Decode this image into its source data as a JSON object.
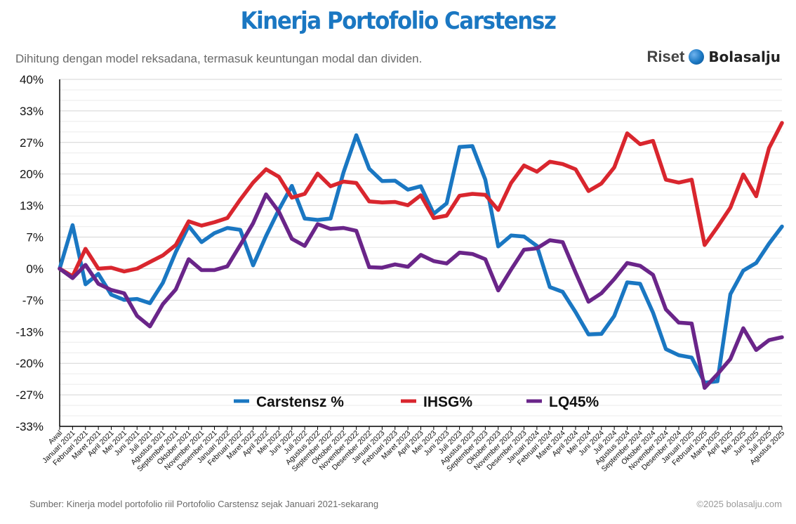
{
  "header": {
    "title": "Kinerja Portofolio Carstensz",
    "subtitle": "Dihitung dengan model reksadana, termasuk keuntungan modal dan dividen.",
    "brand_riset": "Riset",
    "brand_name": "Bolasalju",
    "brand_icon": "snowball-icon"
  },
  "footer": {
    "source": "Sumber: Kinerja model portofolio riil Portofolio Carstensz sejak Januari 2021-sekarang",
    "copyright": "©2025 bolasalju.com"
  },
  "colors": {
    "carstensz": "#1a77c2",
    "ihsg": "#d9262e",
    "lq45": "#6a2589",
    "grid": "#d4d4d4",
    "axis": "#000000"
  },
  "chart_data": {
    "type": "line",
    "title": "Kinerja Portofolio Carstensz",
    "xlabel": "",
    "ylabel": "",
    "ylim": [
      -33.33,
      40
    ],
    "yticks": [
      -33.33,
      -26.67,
      -20,
      -13.33,
      -6.67,
      0,
      6.67,
      13.33,
      20,
      26.67,
      33.33,
      40
    ],
    "ytick_labels": [
      "-33%",
      "-27%",
      "-20%",
      "-13%",
      "-7%",
      "0%",
      "7%",
      "13%",
      "20%",
      "27%",
      "33%",
      "40%"
    ],
    "grid": true,
    "legend_position": "bottom-center",
    "categories": [
      "Awal",
      "Januari 2021",
      "Februari 2021",
      "Maret 2021",
      "April 2021",
      "Mei 2021",
      "Juni 2021",
      "Juli 2021",
      "Agustus 2021",
      "September 2021",
      "Oktober 2021",
      "November 2021",
      "Desember 2021",
      "Januari 2022",
      "Februari 2022",
      "Maret 2022",
      "April 2022",
      "Mei 2022",
      "Juni 2022",
      "Juli 2022",
      "Agustus 2022",
      "September 2022",
      "Oktober 2022",
      "November 2022",
      "Desember 2022",
      "Januari 2023",
      "Februari 2023",
      "Maret 2023",
      "April 2023",
      "Mei 2023",
      "Juni 2023",
      "Juli 2023",
      "Agustus 2023",
      "September 2023",
      "Oktober 2023",
      "November 2023",
      "Desember 2023",
      "Januari 2024",
      "Februari 2024",
      "Maret 2024",
      "April 2024",
      "Mei 2024",
      "Juni 2024",
      "Juli 2024",
      "Agustus 2024",
      "September 2024",
      "Oktober 2024",
      "November 2024",
      "Desember 2024",
      "Januari 2025",
      "Februari 2025",
      "Maret 2025",
      "April 2025",
      "Mei 2025",
      "Juni 2025",
      "Juli 2025",
      "Agustus 2025"
    ],
    "x_display_labels": [
      "Awal",
      "Januari 2021",
      "Februari 2021",
      "Maret 2021",
      "April 2021",
      "Mei 2021",
      "Juni 2021",
      "Juli 2021",
      "Agustus 2021",
      "September 2021",
      "Oktober 2021",
      "November 2021",
      "Desember 2021",
      "Januari 2022",
      "Februari 2022",
      "Maret 2022",
      "April 2022",
      "Mei 2022",
      "Juni 2022",
      "Juli 2022",
      "Agustus 2022",
      "September 2022",
      "Oktober 2022",
      "November 2022",
      "Desember 2022",
      "Januari 2023",
      "Februari 2023",
      "Maret 2023",
      "April 2023",
      "Mei 2023",
      "Juni 2023",
      "Juli 2023",
      "Agustus 2023",
      "September 2023",
      "Oktober 2023",
      "November 2023",
      "Desember 2023",
      "Januari 2024",
      "Februari 2024",
      "Maret 2024",
      "April 2024",
      "Mei 2024",
      "Juni 2024",
      "Juli 2024",
      "Agustus 2024",
      "September 2024",
      "Oktober 2024",
      "November 2024",
      "Desember 2024",
      "Januari 2025",
      "Februari 2025",
      "Maret 2025",
      "April 2025",
      "Mei 2025",
      "Juni 2025",
      "Juli 2025",
      "Agustus 2025"
    ],
    "series": [
      {
        "name": "Carstensz %",
        "color_key": "carstensz",
        "values": [
          0.0,
          9.2,
          -3.3,
          -1.1,
          -5.5,
          -6.6,
          -6.4,
          -7.3,
          -3.0,
          3.5,
          9.0,
          5.6,
          7.5,
          8.6,
          8.2,
          0.7,
          6.9,
          12.5,
          17.5,
          10.6,
          10.3,
          10.6,
          20.3,
          28.2,
          21.1,
          18.5,
          18.6,
          16.7,
          17.4,
          11.6,
          13.8,
          25.7,
          25.9,
          18.8,
          4.7,
          7.0,
          6.8,
          4.8,
          -3.9,
          -4.9,
          -9.2,
          -13.9,
          -13.8,
          -10.0,
          -2.9,
          -3.2,
          -9.3,
          -17.0,
          -18.3,
          -18.8,
          -24.1,
          -23.8,
          -5.4,
          -0.4,
          1.2,
          5.3,
          8.9
        ]
      },
      {
        "name": "IHSG%",
        "color_key": "ihsg",
        "values": [
          0.0,
          -1.6,
          4.2,
          0.0,
          0.2,
          -0.6,
          0.0,
          1.4,
          2.8,
          5.0,
          10.0,
          9.1,
          9.8,
          10.7,
          14.6,
          18.2,
          21.0,
          19.4,
          15.0,
          15.8,
          20.1,
          17.4,
          18.4,
          18.1,
          14.2,
          14.0,
          14.1,
          13.4,
          15.5,
          10.7,
          11.2,
          15.4,
          15.8,
          15.6,
          12.4,
          18.1,
          21.8,
          20.5,
          22.6,
          22.1,
          21.0,
          16.4,
          18.0,
          21.4,
          28.6,
          26.3,
          27.0,
          18.8,
          18.2,
          18.8,
          5.0,
          8.8,
          12.9,
          19.9,
          15.3,
          25.5,
          30.8
        ]
      },
      {
        "name": "LQ45%",
        "color_key": "lq45",
        "values": [
          0.0,
          -2.0,
          0.8,
          -3.2,
          -4.5,
          -5.2,
          -10.0,
          -12.2,
          -7.5,
          -4.4,
          2.0,
          -0.3,
          -0.3,
          0.5,
          5.0,
          9.6,
          15.7,
          12.0,
          6.3,
          4.8,
          9.4,
          8.4,
          8.6,
          8.0,
          0.3,
          0.2,
          0.9,
          0.4,
          2.9,
          1.6,
          1.1,
          3.4,
          3.1,
          2.0,
          -4.6,
          -0.2,
          4.0,
          4.3,
          6.0,
          5.6,
          -0.8,
          -7.0,
          -5.2,
          -2.2,
          1.2,
          0.6,
          -1.3,
          -8.6,
          -11.4,
          -11.6,
          -25.2,
          -22.3,
          -19.1,
          -12.6,
          -17.2,
          -15.1,
          -14.5
        ]
      }
    ]
  }
}
